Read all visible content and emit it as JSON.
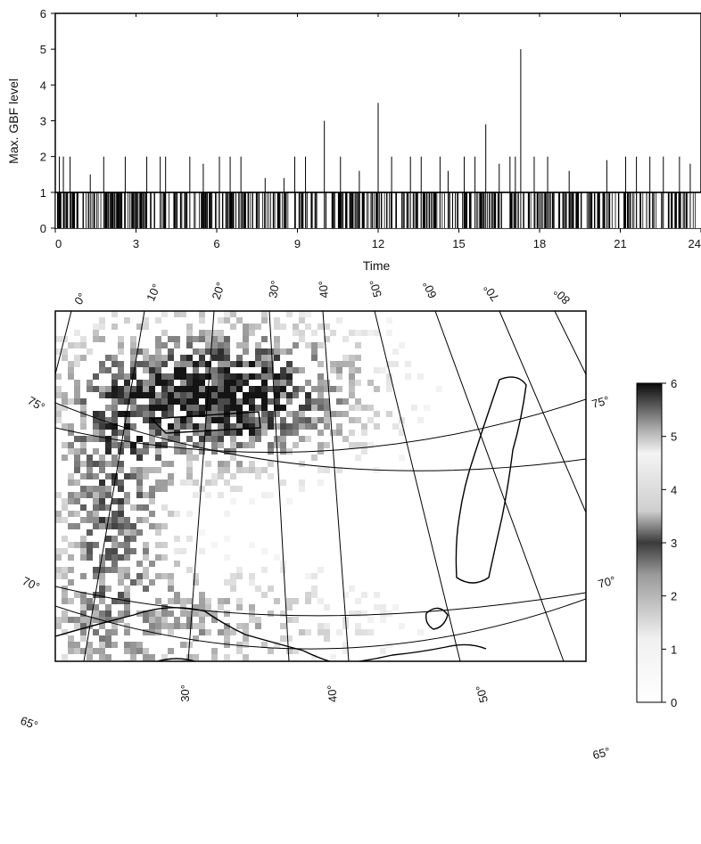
{
  "chart_data": [
    {
      "type": "bar",
      "xlabel": "Time",
      "ylabel": "Max. GBF level",
      "xlim": [
        0,
        24
      ],
      "ylim": [
        0,
        6
      ],
      "x_ticks": [
        "0",
        "3",
        "6",
        "9",
        "12",
        "15",
        "18",
        "21",
        "24"
      ],
      "y_ticks": [
        "0",
        "1",
        "2",
        "3",
        "4",
        "5",
        "6"
      ],
      "values_note_free": true,
      "spikes": [
        {
          "x": 0.15,
          "y": 2
        },
        {
          "x": 0.3,
          "y": 2
        },
        {
          "x": 0.55,
          "y": 2
        },
        {
          "x": 1.3,
          "y": 1.5
        },
        {
          "x": 1.8,
          "y": 2
        },
        {
          "x": 2.6,
          "y": 2
        },
        {
          "x": 3.4,
          "y": 2
        },
        {
          "x": 3.9,
          "y": 2
        },
        {
          "x": 4.1,
          "y": 2
        },
        {
          "x": 5.0,
          "y": 2
        },
        {
          "x": 5.5,
          "y": 1.8
        },
        {
          "x": 6.1,
          "y": 2
        },
        {
          "x": 6.5,
          "y": 2
        },
        {
          "x": 6.9,
          "y": 2
        },
        {
          "x": 7.8,
          "y": 1.4
        },
        {
          "x": 8.5,
          "y": 1.4
        },
        {
          "x": 8.9,
          "y": 2
        },
        {
          "x": 9.3,
          "y": 2
        },
        {
          "x": 10.0,
          "y": 3.0
        },
        {
          "x": 10.6,
          "y": 2
        },
        {
          "x": 11.3,
          "y": 1.6
        },
        {
          "x": 12.0,
          "y": 3.5
        },
        {
          "x": 12.5,
          "y": 2
        },
        {
          "x": 13.2,
          "y": 2
        },
        {
          "x": 13.6,
          "y": 2
        },
        {
          "x": 14.3,
          "y": 2
        },
        {
          "x": 14.6,
          "y": 1.6
        },
        {
          "x": 15.2,
          "y": 2
        },
        {
          "x": 15.6,
          "y": 2
        },
        {
          "x": 16.0,
          "y": 2.9
        },
        {
          "x": 16.5,
          "y": 1.8
        },
        {
          "x": 16.9,
          "y": 2
        },
        {
          "x": 17.1,
          "y": 2
        },
        {
          "x": 17.3,
          "y": 5.0
        },
        {
          "x": 17.8,
          "y": 2
        },
        {
          "x": 18.3,
          "y": 2
        },
        {
          "x": 19.1,
          "y": 1.6
        },
        {
          "x": 20.5,
          "y": 1.9
        },
        {
          "x": 21.2,
          "y": 2
        },
        {
          "x": 21.6,
          "y": 2
        },
        {
          "x": 22.1,
          "y": 2
        },
        {
          "x": 22.6,
          "y": 2
        },
        {
          "x": 23.2,
          "y": 2
        },
        {
          "x": 23.6,
          "y": 1.8
        }
      ],
      "baseline_level": 1
    },
    {
      "type": "heatmap",
      "colorbar_ticks": [
        "0",
        "1",
        "2",
        "3",
        "4",
        "5",
        "6"
      ],
      "colorbar_range": [
        0,
        6
      ],
      "top_longitude_labels": [
        "0°",
        "10°",
        "20°",
        "30°",
        "40°",
        "50°",
        "60°",
        "70°",
        "80°"
      ],
      "bottom_longitude_labels": [
        "30°",
        "40°",
        "50°"
      ],
      "latitude_labels": [
        "75°",
        "70°",
        "65°"
      ]
    }
  ]
}
